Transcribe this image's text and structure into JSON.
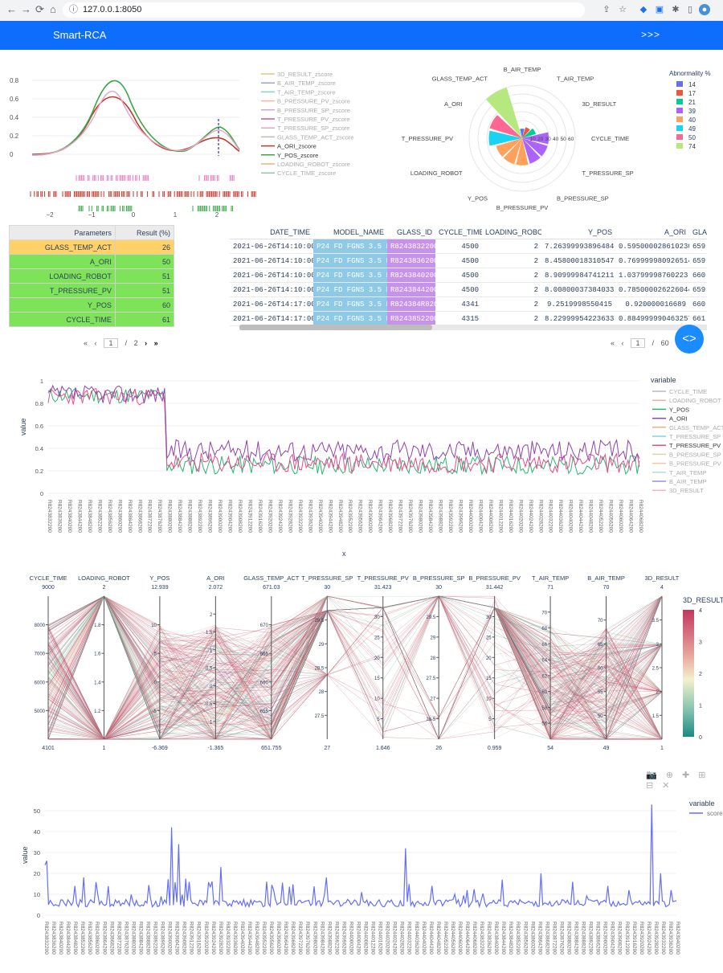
{
  "browser": {
    "url": "127.0.0.1:8050",
    "nav": [
      "←",
      "→",
      "⟳",
      "⌂"
    ]
  },
  "header": {
    "title": "Smart-RCA",
    "expand_label": ">>>"
  },
  "kde": {
    "ticks_y": [
      "0.8",
      "0.6",
      "0.4",
      "0.2",
      "0"
    ],
    "ticks_x": [
      "−2",
      "−1",
      "0",
      "1",
      "2"
    ],
    "legend": [
      "3D_RESULT_zscore",
      "B_AIR_TEMP_zscore",
      "T_AIR_TEMP_zscore",
      "B_PRESSURE_PV_zscore",
      "B_PRESSURE_SP_zscore",
      "T_PRESSURE_PV_zscore",
      "T_PRESSURE_SP_zscore",
      "GLASS_TEMP_ACT_zscore",
      "A_ORI_zscore",
      "Y_POS_zscore",
      "LOADING_ROBOT_zscore",
      "CYCLE_TIME_zscore"
    ],
    "legend_colors": [
      "#e8c27a",
      "#9a9fe0",
      "#7fd6c2",
      "#f2b8a2",
      "#c9a4e8",
      "#d9558f",
      "#e7a3c8",
      "#c8b7a8",
      "#c0392b",
      "#3aa648",
      "#f0b27a",
      "#8fc9a8"
    ]
  },
  "polar": {
    "labels": [
      "B_AIR_TEMP",
      "T_AIR_TEMP",
      "3D_RESULT",
      "CYCLE_TIME",
      "T_PRESSURE_SP",
      "B_PRESSURE_SP",
      "B_PRESSURE_PV",
      "Y_POS",
      "LOADING_ROBOT",
      "T_PRESSURE_PV",
      "A_ORI",
      "GLASS_TEMP_ACT"
    ],
    "radial_ticks": [
      "10",
      "20",
      "30",
      "40",
      "50",
      "60"
    ],
    "legend_title": "Abnormality %",
    "legend": [
      {
        "label": "14",
        "color": "#636efa"
      },
      {
        "label": "17",
        "color": "#ef553b"
      },
      {
        "label": "21",
        "color": "#00cc96"
      },
      {
        "label": "39",
        "color": "#ab63fa"
      },
      {
        "label": "40",
        "color": "#ffa15a"
      },
      {
        "label": "49",
        "color": "#19d3f3"
      },
      {
        "label": "50",
        "color": "#ff6692"
      },
      {
        "label": "74",
        "color": "#b6e880"
      }
    ],
    "values": [
      14,
      17,
      21,
      39,
      39,
      39,
      40,
      40,
      40,
      49,
      50,
      74
    ]
  },
  "param_table": {
    "headers": [
      "Parameters",
      "Result (%)"
    ],
    "rows": [
      [
        "GLASS_TEMP_ACT",
        "26"
      ],
      [
        "A_ORI",
        "50"
      ],
      [
        "LOADING_ROBOT",
        "51"
      ],
      [
        "T_PRESSURE_PV",
        "51"
      ],
      [
        "Y_POS",
        "60"
      ],
      [
        "CYCLE_TIME",
        "61"
      ]
    ],
    "pager": {
      "page": "1",
      "of": "/",
      "total": "2"
    }
  },
  "data_table": {
    "headers": [
      "DATE_TIME",
      "MODEL_NAME",
      "GLASS_ID",
      "CYCLE_TIME",
      "LOADING_ROBOT",
      "Y_POS",
      "A_ORI",
      "GLA"
    ],
    "rows": [
      [
        "2021-06-26T14:10:00",
        "P24 FD FGNS 3.5 L",
        "R8243832200",
        "4500",
        "2",
        "7.26399993896484",
        "0.595000028610230",
        "659.7"
      ],
      [
        "2021-06-26T14:10:00",
        "P24 FD FGNS 3.5 L",
        "R8243836200",
        "4500",
        "2",
        "8.45800018310547",
        "0.769999980926514",
        "659.6"
      ],
      [
        "2021-06-26T14:10:00",
        "P24 FD FGNS 3.5 L",
        "R8243840200",
        "4500",
        "2",
        "8.90999984741211",
        "1.03799998760223",
        "660.8"
      ],
      [
        "2021-06-26T14:10:00",
        "P24 FD FGNS 3.5 L",
        "R8243844200",
        "4500",
        "2",
        "8.00800037384033",
        "0.785000026226044",
        "659"
      ],
      [
        "2021-06-26T14:17:00",
        "P24 FD FGNS 3.5 L",
        "R824384R820",
        "4341",
        "2",
        "9.2519998550415",
        "0.920000016689",
        "660.6"
      ],
      [
        "2021-06-26T14:17:00",
        "P24 FD FGNS 3.5 L",
        "R8243852200",
        "4315",
        "2",
        "8.22999954223633",
        "0.884999990463257",
        "661.6"
      ]
    ],
    "pager": {
      "page": "1",
      "of": "/",
      "total": "60"
    }
  },
  "line1": {
    "ylabel": "value",
    "xlabel": "x",
    "legend_title": "variable",
    "ticks_y": [
      "1",
      "0.8",
      "0.6",
      "0.4",
      "0.2",
      "0"
    ],
    "legend": [
      {
        "label": "CYCLE_TIME",
        "color": "#b9b9c9"
      },
      {
        "label": "LOADING_ROBOT",
        "color": "#e9b4a8"
      },
      {
        "label": "Y_POS",
        "color": "#2bb673"
      },
      {
        "label": "A_ORI",
        "color": "#8e44ad"
      },
      {
        "label": "GLASS_TEMP_ACT",
        "color": "#f0b27a"
      },
      {
        "label": "T_PRESSURE_SP",
        "color": "#7ed6df"
      },
      {
        "label": "T_PRESSURE_PV",
        "color": "#e84d8a"
      },
      {
        "label": "B_PRESSURE_SP",
        "color": "#d8d8a8"
      },
      {
        "label": "B_PRESSURE_PV",
        "color": "#f5c6a5"
      },
      {
        "label": "T_AIR_TEMP",
        "color": "#a8e6cf"
      },
      {
        "label": "B_AIR_TEMP",
        "color": "#9b8fd6"
      },
      {
        "label": "3D_RESULT",
        "color": "#f7b7b7"
      }
    ],
    "tick_labels": [
      "R8243832200",
      "R8243836200",
      "R8243840200",
      "R8243844200",
      "R8243848200",
      "R8243852200",
      "R8243856200",
      "R8243860200",
      "R8243864200",
      "R8243868200",
      "R8243872200",
      "R8243876200",
      "R8243880200",
      "R8243884200",
      "R8243888200",
      "R8243892200",
      "R8243896200",
      "R8243900200",
      "R8243904200",
      "R8243908200",
      "R8243912200",
      "R8243916200",
      "R8243920200",
      "R8243924200",
      "R8243928200",
      "R8243932200",
      "R8243936200",
      "R8243940200",
      "R8243944200",
      "R8243948200",
      "R8243952200",
      "R8243956200",
      "R8243960200",
      "R8243964200",
      "R8243968200",
      "R8243972200",
      "R8243976200",
      "R8243980200",
      "R8243984200",
      "R8243988200",
      "R8243992200",
      "R8243996200",
      "R8244000200",
      "R8244004200",
      "R8244008200",
      "R8244012200",
      "R8244016200",
      "R8244020200",
      "R8244024200",
      "R8244028200",
      "R8244032200",
      "R8244036200",
      "R8244040200",
      "R8244044200",
      "R8244048200",
      "R8244052200",
      "R8244056200",
      "R8244060200",
      "R8244064200",
      "R8244068200"
    ]
  },
  "parcoords": {
    "axes": [
      {
        "label": "CYCLE_TIME",
        "max": "9000",
        "min": "4101",
        "ticks": [
          "8000",
          "7000",
          "6000",
          "5000"
        ]
      },
      {
        "label": "LOADING_ROBOT",
        "max": "2",
        "min": "1",
        "ticks": [
          "1.8",
          "1.6",
          "1.4",
          "1.2"
        ]
      },
      {
        "label": "Y_POS",
        "max": "12.939",
        "min": "-6.369",
        "ticks": [
          "10",
          "5",
          "0",
          "-5"
        ]
      },
      {
        "label": "A_ORI",
        "max": "2.072",
        "min": "-1.365",
        "ticks": [
          "2",
          "1.5",
          "1",
          "0.5",
          "0",
          "-0.5",
          "-1"
        ]
      },
      {
        "label": "GLASS_TEMP_ACT",
        "max": "671.03",
        "min": "651.755",
        "ticks": [
          "670",
          "665",
          "660",
          "655"
        ]
      },
      {
        "label": "T_PRESSURE_SP",
        "max": "30",
        "min": "27",
        "ticks": [
          "29.5",
          "29",
          "28.5",
          "28",
          "27.5"
        ]
      },
      {
        "label": "T_PRESSURE_PV",
        "max": "31.423",
        "min": "1.646",
        "ticks": [
          "30",
          "25",
          "20",
          "15",
          "10",
          "5"
        ]
      },
      {
        "label": "B_PRESSURE_SP",
        "max": "30",
        "min": "26",
        "ticks": [
          "29.5",
          "29",
          "28",
          "27.5",
          "27",
          "26.5"
        ]
      },
      {
        "label": "B_PRESSURE_PV",
        "max": "31.442",
        "min": "0.959",
        "ticks": [
          "30",
          "25",
          "20",
          "15",
          "10",
          "5"
        ]
      },
      {
        "label": "T_AIR_TEMP",
        "max": "71",
        "min": "54",
        "ticks": [
          "70",
          "68",
          "66",
          "64",
          "62",
          "60",
          "58",
          "56"
        ]
      },
      {
        "label": "B_AIR_TEMP",
        "max": "70",
        "min": "49",
        "ticks": [
          "70",
          "65",
          "60",
          "55",
          "50"
        ]
      },
      {
        "label": "3D_RESULT",
        "max": "4",
        "min": "1",
        "ticks": [
          "3.5",
          "3",
          "2.5",
          "2",
          "1.5"
        ]
      }
    ],
    "colorbar_title": "3D_RESULT",
    "colorbar_ticks": [
      "4",
      "3",
      "2",
      "1",
      "0"
    ]
  },
  "line2": {
    "ylabel": "value",
    "legend_title": "variable",
    "legend_label": "score",
    "ticks_y": [
      "50",
      "40",
      "30",
      "20",
      "10",
      "0"
    ],
    "modebar": "📷 ⊕ ✚ ⊞ ⊟ ✕"
  }
}
